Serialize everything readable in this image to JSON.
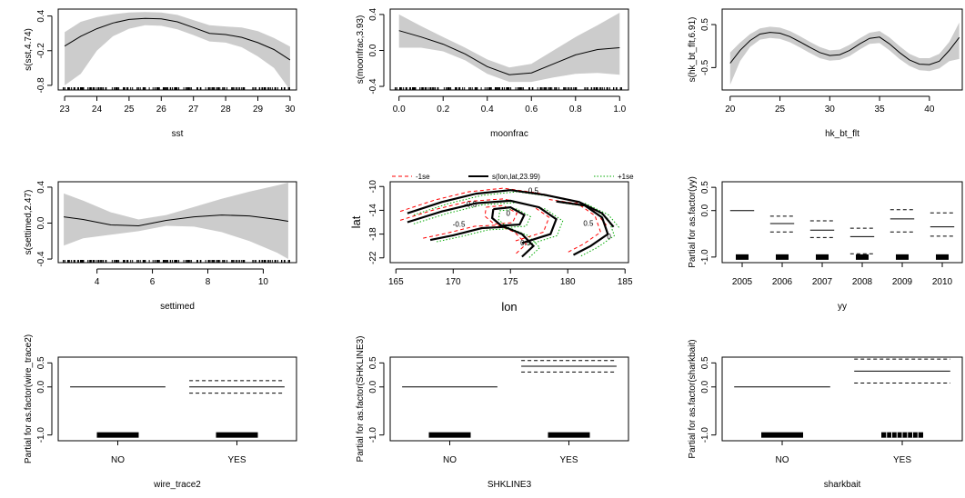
{
  "colors": {
    "band": "#cccccc",
    "line": "#000000",
    "lower_se": "#ff0000",
    "upper_se": "#00aa00"
  },
  "chart_data": [
    {
      "id": "sst",
      "type": "line",
      "xlabel": "sst",
      "ylabel": "s(sst,4.74)",
      "xlim": [
        22.8,
        30.2
      ],
      "ylim": [
        -0.88,
        0.52
      ],
      "xticks": [
        23,
        24,
        25,
        26,
        27,
        28,
        29,
        30
      ],
      "yticks": [
        0.4,
        -0.2,
        -0.8
      ],
      "ytick_labels": [
        "0.4",
        "-0.2",
        "-0.8"
      ],
      "x": [
        23,
        23.5,
        24,
        24.5,
        25,
        25.5,
        26,
        26.5,
        27,
        27.5,
        28,
        28.5,
        29,
        29.5,
        30
      ],
      "y": [
        -0.12,
        0.05,
        0.18,
        0.28,
        0.34,
        0.36,
        0.35,
        0.3,
        0.2,
        0.1,
        0.08,
        0.03,
        -0.06,
        -0.18,
        -0.36
      ],
      "upper": [
        0.12,
        0.3,
        0.38,
        0.43,
        0.46,
        0.47,
        0.46,
        0.42,
        0.33,
        0.24,
        0.22,
        0.2,
        0.14,
        0.02,
        -0.13
      ],
      "lower": [
        -0.8,
        -0.6,
        -0.2,
        0.05,
        0.18,
        0.24,
        0.23,
        0.17,
        0.07,
        -0.04,
        -0.06,
        -0.14,
        -0.3,
        -0.5,
        -0.88
      ],
      "rug": true
    },
    {
      "id": "moonfrac",
      "type": "line",
      "xlabel": "moonfrac",
      "ylabel": "s(moonfrac,3.93)",
      "xlim": [
        -0.04,
        1.04
      ],
      "ylim": [
        -0.44,
        0.46
      ],
      "xticks": [
        0.0,
        0.2,
        0.4,
        0.6,
        0.8,
        1.0
      ],
      "xtick_labels": [
        "0.0",
        "0.2",
        "0.4",
        "0.6",
        "0.8",
        "1.0"
      ],
      "yticks": [
        0.4,
        0.0,
        -0.4
      ],
      "ytick_labels": [
        "0.4",
        "0.0",
        "-0.4"
      ],
      "x": [
        0,
        0.1,
        0.2,
        0.3,
        0.4,
        0.5,
        0.6,
        0.7,
        0.8,
        0.9,
        1.0
      ],
      "y": [
        0.22,
        0.15,
        0.07,
        -0.04,
        -0.18,
        -0.27,
        -0.25,
        -0.15,
        -0.05,
        0.01,
        0.03
      ],
      "upper": [
        0.4,
        0.27,
        0.15,
        0.03,
        -0.1,
        -0.19,
        -0.15,
        0.0,
        0.15,
        0.28,
        0.42
      ],
      "lower": [
        0.03,
        0.03,
        -0.01,
        -0.11,
        -0.26,
        -0.35,
        -0.35,
        -0.3,
        -0.26,
        -0.25,
        -0.27
      ],
      "rug": true
    },
    {
      "id": "hk_bt_flt",
      "type": "line",
      "xlabel": "hk_bt_flt",
      "ylabel": "s(hk_bt_flt,6.91)",
      "xlim": [
        19.2,
        43.3
      ],
      "ylim": [
        -1.02,
        0.86
      ],
      "xticks": [
        20,
        25,
        30,
        35,
        40
      ],
      "yticks": [
        0.5,
        -0.5
      ],
      "ytick_labels": [
        "0.5",
        "-0.5"
      ],
      "x": [
        20,
        21,
        22,
        23,
        24,
        25,
        26,
        27,
        28,
        29,
        30,
        31,
        32,
        33,
        34,
        35,
        36,
        37,
        38,
        39,
        40,
        41,
        42,
        43
      ],
      "y": [
        -0.4,
        -0.1,
        0.13,
        0.28,
        0.32,
        0.3,
        0.22,
        0.1,
        -0.03,
        -0.15,
        -0.22,
        -0.2,
        -0.1,
        0.05,
        0.18,
        0.21,
        0.05,
        -0.15,
        -0.32,
        -0.42,
        -0.43,
        -0.35,
        -0.1,
        0.2
      ],
      "upper": [
        -0.15,
        0.08,
        0.28,
        0.41,
        0.45,
        0.43,
        0.35,
        0.23,
        0.1,
        -0.02,
        -0.1,
        -0.08,
        0.03,
        0.18,
        0.31,
        0.35,
        0.2,
        0.0,
        -0.18,
        -0.28,
        -0.28,
        -0.18,
        0.1,
        0.55
      ],
      "lower": [
        -0.9,
        -0.35,
        -0.02,
        0.15,
        0.19,
        0.17,
        0.09,
        -0.03,
        -0.16,
        -0.28,
        -0.34,
        -0.32,
        -0.23,
        -0.08,
        0.05,
        0.07,
        -0.1,
        -0.3,
        -0.46,
        -0.56,
        -0.58,
        -0.52,
        -0.35,
        -0.3
      ],
      "rug": false
    },
    {
      "id": "settimed",
      "type": "line",
      "xlabel": "settimed",
      "ylabel": "s(settimed,2.47)",
      "xlim": [
        2.6,
        11.2
      ],
      "ylim": [
        -0.44,
        0.46
      ],
      "xticks": [
        4,
        6,
        8,
        10
      ],
      "yticks": [
        0.4,
        0.0,
        -0.4
      ],
      "ytick_labels": [
        "0.4",
        "0.0",
        "-0.4"
      ],
      "x": [
        2.8,
        3.5,
        4.5,
        5.5,
        6.5,
        7.5,
        8.5,
        9.5,
        10.5,
        10.9
      ],
      "y": [
        0.07,
        0.04,
        -0.02,
        -0.03,
        0.03,
        0.07,
        0.09,
        0.08,
        0.04,
        0.02
      ],
      "upper": [
        0.33,
        0.25,
        0.12,
        0.04,
        0.09,
        0.18,
        0.27,
        0.35,
        0.42,
        0.45
      ],
      "lower": [
        -0.25,
        -0.17,
        -0.13,
        -0.09,
        -0.03,
        -0.04,
        -0.1,
        -0.2,
        -0.33,
        -0.4
      ],
      "rug": true
    },
    {
      "id": "lonlat",
      "type": "contour",
      "title_items": [
        "-1se",
        "s(lon,lat,23.99)",
        "+1se"
      ],
      "xlabel": "lon",
      "ylabel": "lat",
      "xlim": [
        164.5,
        185.3
      ],
      "ylim": [
        -22.8,
        -9.2
      ],
      "xticks": [
        165,
        170,
        175,
        180,
        185
      ],
      "yticks": [
        -10,
        -14,
        -18,
        -22
      ],
      "ytick_labels": [
        "-10",
        "-14",
        "-18",
        "-22"
      ],
      "contour_labels": [
        "-0.5",
        "0.5",
        "0",
        "-0.5",
        "0.5",
        "0.5",
        "0"
      ]
    },
    {
      "id": "yy",
      "type": "factor",
      "xlabel": "yy",
      "ylabel": "Partial for as.factor(yy)",
      "ylim": [
        -1.12,
        0.62
      ],
      "yticks": [
        0.5,
        0.0,
        -1.0
      ],
      "ytick_labels": [
        "0.5",
        "0.0",
        "-1.0"
      ],
      "categories": [
        "2005",
        "2006",
        "2007",
        "2008",
        "2009",
        "2010"
      ],
      "values": [
        0.0,
        -0.28,
        -0.42,
        -0.56,
        -0.18,
        -0.35
      ],
      "upper": [
        null,
        -0.12,
        -0.22,
        -0.38,
        0.02,
        -0.05
      ],
      "lower": [
        null,
        -0.46,
        -0.58,
        -0.93,
        -0.46,
        -0.55
      ],
      "rug": [
        1,
        1,
        1,
        1,
        1,
        1
      ]
    },
    {
      "id": "wire_trace2",
      "type": "factor",
      "xlabel": "wire_trace2",
      "ylabel": "Partial for as.factor(wire_trace2)",
      "ylim": [
        -1.12,
        0.62
      ],
      "yticks": [
        0.5,
        0.0,
        -1.0
      ],
      "ytick_labels": [
        "0.5",
        "0.0",
        "-1.0"
      ],
      "categories": [
        "NO",
        "YES"
      ],
      "values": [
        0.0,
        0.0
      ],
      "upper": [
        null,
        0.13
      ],
      "lower": [
        null,
        -0.13
      ],
      "rug": [
        1,
        1
      ]
    },
    {
      "id": "SHKLINE3",
      "type": "factor",
      "xlabel": "SHKLINE3",
      "ylabel": "Partial for as.factor(SHKLINE3)",
      "ylim": [
        -1.12,
        0.62
      ],
      "yticks": [
        0.5,
        0.0,
        -1.0
      ],
      "ytick_labels": [
        "0.5",
        "0.0",
        "-1.0"
      ],
      "categories": [
        "NO",
        "YES"
      ],
      "values": [
        0.0,
        0.43
      ],
      "upper": [
        null,
        0.55
      ],
      "lower": [
        null,
        0.31
      ],
      "rug": [
        1,
        1
      ]
    },
    {
      "id": "sharkbait",
      "type": "factor",
      "xlabel": "sharkbait",
      "ylabel": "Partial for as.factor(sharkbait)",
      "ylim": [
        -1.12,
        0.62
      ],
      "yticks": [
        0.5,
        0.0,
        -1.0
      ],
      "ytick_labels": [
        "0.5",
        "0.0",
        "-1.0"
      ],
      "categories": [
        "NO",
        "YES"
      ],
      "values": [
        0.0,
        0.33
      ],
      "upper": [
        null,
        0.58
      ],
      "lower": [
        null,
        0.08
      ],
      "rug": [
        1,
        0.6
      ]
    }
  ]
}
